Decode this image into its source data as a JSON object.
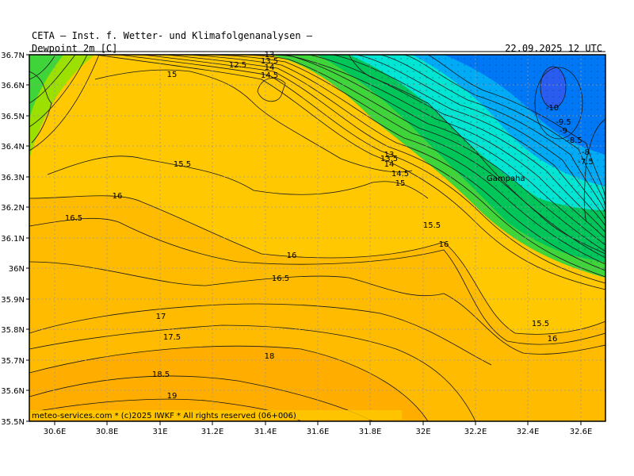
{
  "header": {
    "title": "CETA — Inst. f. Wetter- und Klimafolgenanalysen —",
    "field": "Dewpoint 2m [C]",
    "datetime": "22.09.2025 12 UTC"
  },
  "copyright": "meteo-services.com * (c)2025 IWKF * All rights reserved (06+006)",
  "place_label": "Gampaha",
  "axes": {
    "lon_labels": [
      "30.6E",
      "30.8E",
      "31E",
      "31.2E",
      "31.4E",
      "31.6E",
      "31.8E",
      "32E",
      "32.2E",
      "32.4E",
      "32.6E"
    ],
    "lat_labels": [
      "36.7N",
      "36.6N",
      "36.5N",
      "36.4N",
      "36.3N",
      "36.2N",
      "36.1N",
      "36N",
      "35.9N",
      "35.8N",
      "35.7N",
      "35.6N",
      "35.5N"
    ]
  },
  "colors": {
    "band_19": "#ffae00",
    "band_17": "#ffbb00",
    "band_15": "#ffc800",
    "band_13": "#d7e400",
    "green_light": "#9be000",
    "green_mid": "#3fd43a",
    "green_dark": "#00c65a",
    "cyan": "#00e6d2",
    "cyan_light": "#00d8e8",
    "blue_light": "#00aaf5",
    "blue": "#0078f5",
    "blue_dark": "#2a5cf0",
    "grid": "#9a9a9a",
    "contour": "#1a1a1a"
  },
  "contour_labels": [
    {
      "text": "12.5"
    },
    {
      "text": "15"
    },
    {
      "text": "15"
    },
    {
      "text": "14.5"
    },
    {
      "text": "15.5"
    },
    {
      "text": "16"
    },
    {
      "text": "16.5"
    },
    {
      "text": "16"
    },
    {
      "text": "16.5"
    },
    {
      "text": "15.5"
    },
    {
      "text": "16"
    },
    {
      "text": "17"
    },
    {
      "text": "17.5"
    },
    {
      "text": "18"
    },
    {
      "text": "18.5"
    },
    {
      "text": "19"
    },
    {
      "text": "14.5"
    },
    {
      "text": "14"
    },
    {
      "text": "13.5"
    },
    {
      "text": "13"
    },
    {
      "text": "15.5"
    },
    {
      "text": "16"
    },
    {
      "text": "-10"
    },
    {
      "text": "-9.5"
    },
    {
      "text": "-9"
    },
    {
      "text": "-8.5"
    },
    {
      "text": "-8"
    },
    {
      "text": "-7.5"
    },
    {
      "text": "13"
    },
    {
      "text": "13.5"
    },
    {
      "text": "14"
    }
  ]
}
